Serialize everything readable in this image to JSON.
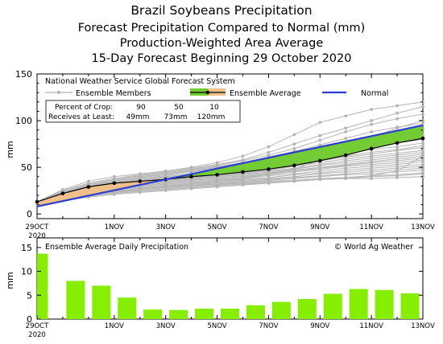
{
  "header": {
    "title": "Brazil Soybeans Precipitation",
    "subtitle1": "Forecast Precipitation Compared to Normal (mm)",
    "subtitle2": "Production-Weighted Area Average",
    "subtitle3": "15-Day Forecast Beginning 29 October 2020"
  },
  "colors": {
    "normal": "#2a3fd0",
    "ensemble_average": "#000000",
    "members": "#b4b4b4",
    "above_normal_fill": "#f0c08a",
    "below_normal_fill": "#74cc34",
    "daily_bar": "#86ee00"
  },
  "chart_data": [
    {
      "type": "line",
      "title": "National Weather Service Global Forecast System",
      "ylabel": "mm",
      "xlabel": "",
      "x_ticks": [
        "29OCT",
        "1NOV",
        "3NOV",
        "5NOV",
        "7NOV",
        "9NOV",
        "11NOV",
        "13NOV"
      ],
      "x_tick_days": [
        0,
        3,
        5,
        7,
        9,
        11,
        13,
        15
      ],
      "x_year_label": "2020",
      "ylim": [
        -5,
        150
      ],
      "yticks": [
        0,
        50,
        100,
        150
      ],
      "grid": false,
      "legend": [
        "Ensemble Members",
        "Ensemble Average",
        "Normal"
      ],
      "legend_position": "top",
      "percent_table": {
        "row1_label": "Percent of Crop:",
        "row1_values": [
          "90",
          "50",
          "10"
        ],
        "row2_label": "Receives at Least:",
        "row2_values": [
          "49mm",
          "73mm",
          "120mm"
        ]
      },
      "series": [
        {
          "name": "Normal",
          "days": [
            0,
            15
          ],
          "values": [
            8,
            95
          ]
        },
        {
          "name": "Ensemble Average",
          "days": [
            0,
            1,
            2,
            3,
            4,
            5,
            6,
            7,
            8,
            9,
            10,
            11,
            12,
            13,
            14,
            15
          ],
          "values": [
            13,
            22,
            29,
            33,
            35,
            37,
            40,
            42,
            45,
            48,
            52,
            57,
            63,
            70,
            76,
            81
          ]
        }
      ],
      "members": [
        [
          13,
          26,
          35,
          40,
          43,
          46,
          50,
          55,
          62,
          72,
          85,
          98,
          105,
          112,
          116,
          120
        ],
        [
          13,
          25,
          33,
          38,
          42,
          45,
          49,
          53,
          58,
          66,
          75,
          84,
          92,
          100,
          108,
          115
        ],
        [
          13,
          24,
          32,
          37,
          41,
          44,
          48,
          52,
          57,
          63,
          70,
          79,
          88,
          96,
          102,
          107
        ],
        [
          13,
          23,
          31,
          36,
          40,
          43,
          47,
          51,
          55,
          61,
          67,
          74,
          81,
          88,
          93,
          97
        ],
        [
          13,
          23,
          30,
          35,
          39,
          42,
          46,
          50,
          54,
          59,
          65,
          71,
          77,
          82,
          87,
          91
        ],
        [
          13,
          22,
          30,
          34,
          38,
          41,
          45,
          49,
          53,
          58,
          63,
          68,
          73,
          77,
          81,
          85
        ],
        [
          13,
          22,
          29,
          34,
          37,
          40,
          43,
          47,
          51,
          56,
          61,
          66,
          71,
          75,
          78,
          82
        ],
        [
          13,
          22,
          29,
          33,
          36,
          39,
          42,
          45,
          49,
          53,
          58,
          63,
          68,
          72,
          76,
          80
        ],
        [
          13,
          21,
          28,
          33,
          36,
          39,
          41,
          44,
          48,
          52,
          56,
          61,
          65,
          69,
          72,
          76
        ],
        [
          13,
          21,
          28,
          32,
          35,
          38,
          40,
          43,
          46,
          50,
          54,
          58,
          62,
          66,
          69,
          73
        ],
        [
          13,
          21,
          27,
          32,
          35,
          37,
          40,
          42,
          45,
          49,
          53,
          57,
          61,
          64,
          68,
          71
        ],
        [
          13,
          20,
          27,
          31,
          34,
          37,
          39,
          41,
          44,
          47,
          51,
          55,
          59,
          62,
          65,
          68
        ],
        [
          13,
          20,
          27,
          31,
          34,
          36,
          38,
          40,
          43,
          46,
          49,
          53,
          57,
          60,
          63,
          66
        ],
        [
          13,
          20,
          26,
          30,
          33,
          36,
          38,
          40,
          42,
          45,
          48,
          52,
          55,
          58,
          61,
          64
        ],
        [
          13,
          19,
          26,
          30,
          33,
          35,
          37,
          39,
          41,
          44,
          47,
          50,
          53,
          56,
          59,
          62
        ],
        [
          13,
          19,
          25,
          29,
          32,
          34,
          36,
          38,
          40,
          43,
          46,
          49,
          52,
          55,
          57,
          60
        ],
        [
          13,
          19,
          25,
          29,
          31,
          33,
          35,
          37,
          39,
          42,
          45,
          48,
          51,
          53,
          55,
          58
        ],
        [
          13,
          18,
          24,
          28,
          30,
          32,
          34,
          36,
          38,
          41,
          43,
          46,
          49,
          51,
          53,
          56
        ],
        [
          13,
          18,
          24,
          27,
          29,
          31,
          33,
          35,
          37,
          39,
          42,
          44,
          47,
          49,
          51,
          53
        ],
        [
          13,
          17,
          23,
          26,
          28,
          30,
          32,
          34,
          36,
          38,
          40,
          43,
          45,
          47,
          49,
          51
        ],
        [
          13,
          17,
          22,
          25,
          27,
          29,
          31,
          33,
          35,
          37,
          39,
          41,
          43,
          45,
          47,
          49
        ],
        [
          13,
          16,
          21,
          24,
          26,
          28,
          30,
          32,
          34,
          36,
          38,
          40,
          42,
          43,
          45,
          47
        ],
        [
          13,
          15,
          20,
          23,
          25,
          27,
          29,
          31,
          33,
          34,
          36,
          38,
          39,
          41,
          42,
          44
        ],
        [
          13,
          15,
          19,
          22,
          24,
          26,
          28,
          30,
          32,
          33,
          35,
          37,
          38,
          40,
          41,
          43
        ],
        [
          13,
          14,
          18,
          21,
          23,
          25,
          27,
          29,
          31,
          33,
          35,
          37,
          39,
          41,
          46,
          62
        ],
        [
          13,
          16,
          20,
          23,
          26,
          29,
          32,
          35,
          38,
          42,
          48,
          58,
          70,
          82,
          92,
          100
        ],
        [
          13,
          17,
          21,
          24,
          27,
          29,
          31,
          32,
          33,
          35,
          36,
          37,
          38,
          38,
          39,
          40
        ]
      ]
    },
    {
      "type": "bar",
      "title": "Ensemble Average Daily Precipitation",
      "credit": "© World Ag Weather",
      "ylabel": "mm",
      "xlabel": "",
      "x_ticks": [
        "29OCT",
        "1NOV",
        "3NOV",
        "5NOV",
        "7NOV",
        "9NOV",
        "11NOV",
        "13NOV"
      ],
      "x_tick_days": [
        0,
        3,
        5,
        7,
        9,
        11,
        13,
        15
      ],
      "x_year_label": "2020",
      "ylim": [
        0,
        17
      ],
      "yticks": [
        0,
        5,
        10,
        15
      ],
      "grid": false,
      "values": [
        13.7,
        8.0,
        7.0,
        4.5,
        2.0,
        1.9,
        2.2,
        2.2,
        2.9,
        3.6,
        4.2,
        5.3,
        6.3,
        6.1,
        5.4,
        5.8
      ]
    }
  ]
}
